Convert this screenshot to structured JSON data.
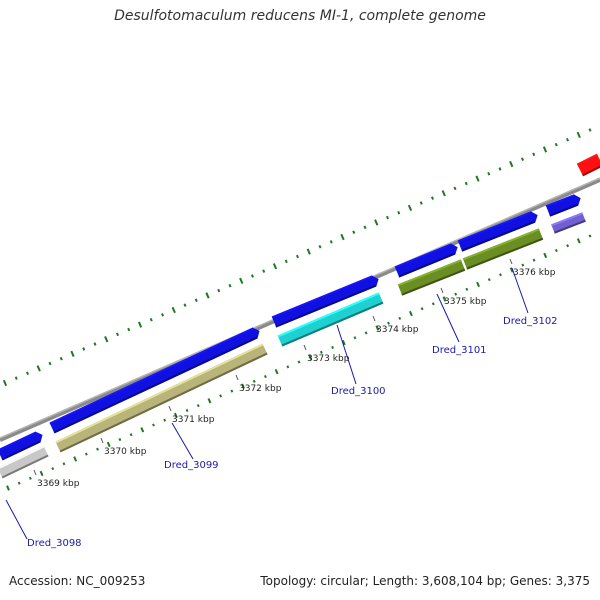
{
  "title": "Desulfotomaculum reducens MI-1, complete genome",
  "footer": {
    "accession": "Accession: NC_009253",
    "summary": "Topology: circular; Length: 3,608,104 bp; Genes: 3,375"
  },
  "ticks": [
    "3369 kbp",
    "3370 kbp",
    "3371 kbp",
    "3372 kbp",
    "3373 kbp",
    "3374 kbp",
    "3375 kbp",
    "3376 kbp"
  ],
  "gene_labels": [
    "Dred_3098",
    "Dred_3099",
    "Dred_3100",
    "Dred_3101",
    "Dred_3102"
  ],
  "colors": {
    "backbone": "#8a8a8a",
    "strand_forward": "#1010e0",
    "gene_3098": "#c8c8c8",
    "gene_3099": "#b8b47a",
    "gene_3100": "#20d0d0",
    "gene_3101": "#6a8e23",
    "gene_3102": "#6a8e23",
    "gene_extra": "#7060d0",
    "gene_red": "#ff1010",
    "gc_ticks": "#1e7a1e",
    "label_text": "#1a1aa8",
    "leader": "#1a1aa8"
  }
}
